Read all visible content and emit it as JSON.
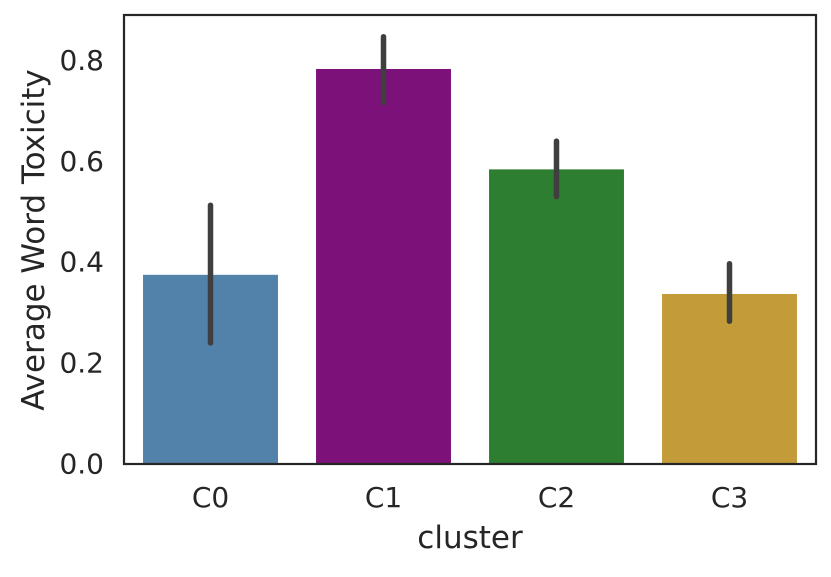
{
  "chart_data": {
    "type": "bar",
    "title": "",
    "xlabel": "cluster",
    "ylabel": "Average Word Toxicity",
    "categories": [
      "C0",
      "C1",
      "C2",
      "C3"
    ],
    "values": [
      0.375,
      0.783,
      0.584,
      0.337
    ],
    "error_low": [
      0.24,
      0.717,
      0.53,
      0.283
    ],
    "error_high": [
      0.513,
      0.847,
      0.64,
      0.397
    ],
    "colors": [
      "#5282a9",
      "#7b1179",
      "#2e7e31",
      "#c39b38"
    ],
    "error_color": "#3f3f3f",
    "ylim": [
      0,
      0.89
    ],
    "yticks": [
      0.0,
      0.2,
      0.4,
      0.6,
      0.8
    ],
    "ytick_labels": [
      "0.0",
      "0.2",
      "0.4",
      "0.6",
      "0.8"
    ],
    "grid": false,
    "legend": false
  }
}
